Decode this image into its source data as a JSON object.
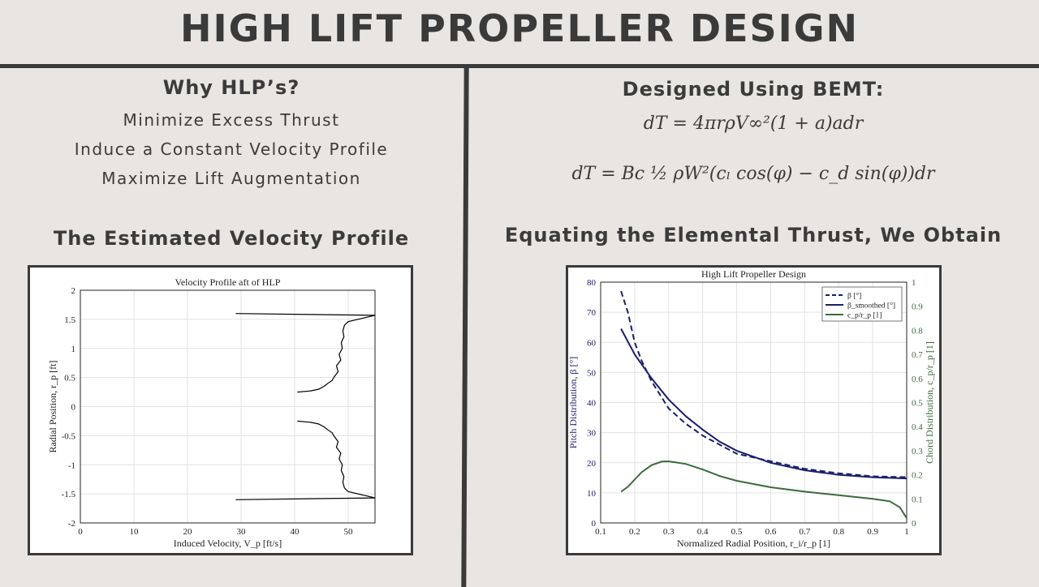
{
  "header": {
    "title": "HIGH LIFT PROPELLER DESIGN"
  },
  "left": {
    "why_title": "Why HLP’s?",
    "points": [
      "Minimize Excess Thrust",
      "Induce a Constant Velocity Profile",
      "Maximize Lift Augmentation"
    ],
    "profile_title": "The Estimated Velocity Profile"
  },
  "right": {
    "bemt_title": "Designed Using BEMT:",
    "eq1": "dT = 4πrρV∞²(1 + a)adr",
    "eq2": "dT = Bc ½ ρW²(cₗ cos(φ) − c_d sin(φ))dr",
    "equating_title": "Equating the Elemental Thrust, We Obtain"
  },
  "chart_data": [
    {
      "type": "line",
      "title": "Velocity Profile aft of HLP",
      "xlabel": "Induced Velocity, V_p [ft/s]",
      "ylabel": "Radial Position, r_p [ft]",
      "xlim": [
        0,
        55
      ],
      "ylim": [
        -2,
        2
      ],
      "xticks": [
        0,
        10,
        20,
        30,
        40,
        50
      ],
      "yticks": [
        -2,
        -1.5,
        -1,
        -0.5,
        0,
        0.5,
        1,
        1.5,
        2
      ],
      "xtick_labels": [
        "0",
        "10",
        "20",
        "30",
        "40",
        "50"
      ],
      "ytick_labels": [
        "-2",
        "-1.5",
        "-1",
        "-0.5",
        "0",
        "0.5",
        "1",
        "1.5",
        "2"
      ],
      "grid": true,
      "series": [
        {
          "color": "#000000",
          "x": [
            29,
            55,
            50,
            49.3,
            49.0,
            49.2,
            48.7,
            48.9,
            48.3,
            48.6,
            47.8,
            48.1,
            47.3,
            47.0,
            46.2,
            45.5,
            44.5,
            43.0,
            40.5
          ],
          "y": [
            1.6,
            1.57,
            1.46,
            1.4,
            1.3,
            1.2,
            1.1,
            1.0,
            0.9,
            0.8,
            0.7,
            0.6,
            0.5,
            0.45,
            0.4,
            0.35,
            0.3,
            0.27,
            0.25
          ]
        },
        {
          "color": "#000000",
          "x": [
            40.5,
            43.0,
            44.5,
            45.5,
            46.2,
            47.0,
            47.3,
            48.1,
            47.8,
            48.6,
            48.3,
            48.9,
            48.7,
            49.2,
            49.0,
            49.3,
            50,
            55,
            29
          ],
          "y": [
            -0.25,
            -0.27,
            -0.3,
            -0.35,
            -0.4,
            -0.45,
            -0.5,
            -0.6,
            -0.7,
            -0.8,
            -0.9,
            -1.0,
            -1.1,
            -1.2,
            -1.3,
            -1.4,
            -1.46,
            -1.57,
            -1.6
          ]
        }
      ]
    },
    {
      "type": "line",
      "title": "High Lift Propeller Design",
      "xlabel": "Normalized Radial Position, r_i/r_p [1]",
      "ylabel": "Pitch Distribution, β [°]",
      "y2label": "Chord Distribution, c_p/r_p [1]",
      "xlim": [
        0.1,
        1
      ],
      "ylim": [
        0,
        80
      ],
      "y2lim": [
        0,
        1
      ],
      "xticks": [
        0.1,
        0.2,
        0.3,
        0.4,
        0.5,
        0.6,
        0.7,
        0.8,
        0.9,
        1
      ],
      "yticks": [
        0,
        10,
        20,
        30,
        40,
        50,
        60,
        70,
        80
      ],
      "y2ticks": [
        0,
        0.1,
        0.2,
        0.3,
        0.4,
        0.5,
        0.6,
        0.7,
        0.8,
        0.9,
        1
      ],
      "xtick_labels": [
        "0.1",
        "0.2",
        "0.3",
        "0.4",
        "0.5",
        "0.6",
        "0.7",
        "0.8",
        "0.9",
        "1"
      ],
      "ytick_labels": [
        "0",
        "10",
        "20",
        "30",
        "40",
        "50",
        "60",
        "70",
        "80"
      ],
      "y2tick_labels": [
        "0",
        "0.1",
        "0.2",
        "0.3",
        "0.4",
        "0.5",
        "0.6",
        "0.7",
        "0.8",
        "0.9",
        "1"
      ],
      "grid": true,
      "legend_position": "top-right",
      "legend": [
        "β [°]",
        "β_smoothed [°]",
        "c_p/r_p [1]"
      ],
      "series": [
        {
          "name": "β [°]",
          "color": "#1a1f6e",
          "style": "dashed",
          "axis": "left",
          "x": [
            0.16,
            0.18,
            0.2,
            0.22,
            0.25,
            0.3,
            0.35,
            0.4,
            0.45,
            0.5,
            0.6,
            0.7,
            0.8,
            0.9,
            1.0
          ],
          "y": [
            77,
            70,
            60,
            54,
            47,
            38,
            33,
            29,
            26,
            23,
            20.5,
            18,
            16.5,
            15.5,
            15.2
          ]
        },
        {
          "name": "β_smoothed [°]",
          "color": "#1a1f6e",
          "style": "solid",
          "axis": "left",
          "x": [
            0.16,
            0.2,
            0.25,
            0.3,
            0.35,
            0.4,
            0.45,
            0.5,
            0.6,
            0.7,
            0.8,
            0.9,
            1.0
          ],
          "y": [
            64.5,
            56,
            48,
            41,
            35.5,
            31,
            27,
            24,
            20,
            17.5,
            16,
            15.2,
            14.8
          ]
        },
        {
          "name": "c_p/r_p [1]",
          "color": "#3a6b3a",
          "style": "solid",
          "axis": "right",
          "x": [
            0.16,
            0.18,
            0.2,
            0.22,
            0.25,
            0.28,
            0.3,
            0.32,
            0.35,
            0.4,
            0.45,
            0.5,
            0.6,
            0.7,
            0.8,
            0.9,
            0.95,
            0.98,
            1.0
          ],
          "y": [
            0.13,
            0.15,
            0.18,
            0.21,
            0.24,
            0.255,
            0.256,
            0.252,
            0.245,
            0.222,
            0.195,
            0.175,
            0.148,
            0.13,
            0.115,
            0.1,
            0.09,
            0.065,
            0.02
          ]
        }
      ]
    }
  ]
}
